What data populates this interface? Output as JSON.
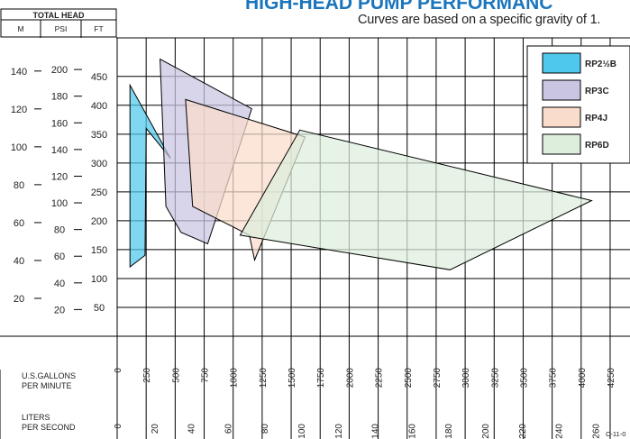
{
  "chart_data": {
    "type": "area",
    "title": "HIGH-HEAD PUMP PERFORMANC",
    "subtitle": "Curves are based on a specific gravity of 1.",
    "code": "C-11-0",
    "head_header": "TOTAL HEAD",
    "head_units": [
      "M",
      "PSI",
      "FT"
    ],
    "ft_ticks": [
      50,
      100,
      150,
      200,
      250,
      300,
      350,
      400,
      450
    ],
    "psi_ticks": [
      20,
      40,
      60,
      80,
      100,
      120,
      140,
      160,
      180,
      200
    ],
    "m_ticks": [
      20,
      40,
      60,
      80,
      100,
      120,
      140
    ],
    "gpm_label": [
      "U.S.GALLONS",
      "PER MINUTE"
    ],
    "gpm_ticks": [
      0,
      250,
      500,
      750,
      1000,
      1250,
      1500,
      1750,
      2000,
      2250,
      2500,
      2750,
      3000,
      3250,
      3500,
      3750,
      4000,
      4250
    ],
    "lps_label": [
      "LITERS",
      "PER SECOND"
    ],
    "lps_ticks": [
      0,
      20,
      40,
      60,
      80,
      100,
      120,
      140,
      160,
      180,
      200,
      220,
      240,
      260
    ],
    "xlim_gpm": [
      0,
      4300
    ],
    "ylim_ft": [
      0,
      500
    ],
    "legend_placement": "top-right",
    "series": [
      {
        "name": "RP2½B",
        "color": "#4ec8ec",
        "points": [
          [
            110,
            435
          ],
          [
            460,
            308
          ],
          [
            250,
            360
          ],
          [
            240,
            140
          ],
          [
            110,
            120
          ]
        ]
      },
      {
        "name": "RP3C",
        "color": "#c9c5e2",
        "points": [
          [
            370,
            480
          ],
          [
            1160,
            394
          ],
          [
            780,
            160
          ],
          [
            550,
            180
          ],
          [
            420,
            225
          ]
        ]
      },
      {
        "name": "RP4J",
        "color": "#f9dccb",
        "points": [
          [
            590,
            410
          ],
          [
            1620,
            345
          ],
          [
            1185,
            132
          ],
          [
            1140,
            175
          ],
          [
            650,
            225
          ]
        ]
      },
      {
        "name": "RP6D",
        "color": "#ddeedd",
        "points": [
          [
            1575,
            357
          ],
          [
            4090,
            235
          ],
          [
            2870,
            115
          ],
          [
            1060,
            175
          ]
        ]
      }
    ]
  }
}
